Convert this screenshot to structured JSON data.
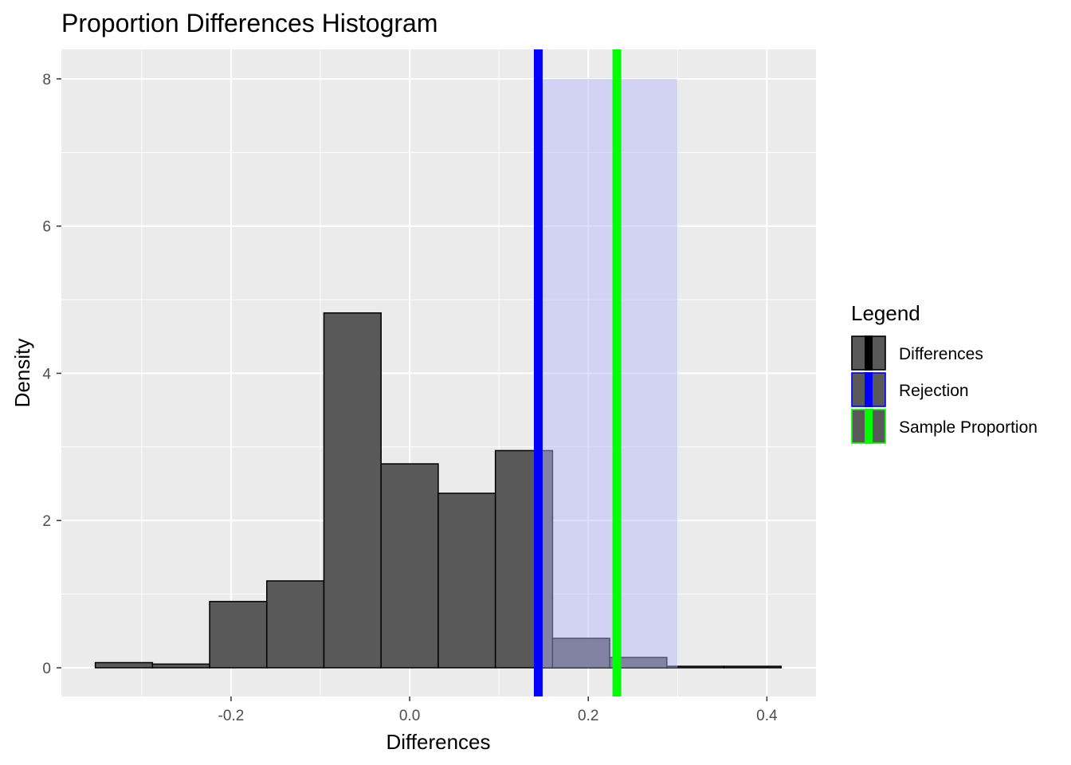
{
  "chart_data": {
    "type": "bar",
    "title": "Proportion Differences Histogram",
    "xlabel": "Differences",
    "ylabel": "Density",
    "xlim": [
      -0.39,
      0.455
    ],
    "ylim": [
      -0.39,
      8.4
    ],
    "x_ticks": [
      {
        "value": -0.2,
        "label": "-0.2"
      },
      {
        "value": 0.0,
        "label": "0.0"
      },
      {
        "value": 0.2,
        "label": "0.2"
      },
      {
        "value": 0.4,
        "label": "0.4"
      }
    ],
    "y_ticks": [
      {
        "value": 0,
        "label": "0"
      },
      {
        "value": 2,
        "label": "2"
      },
      {
        "value": 4,
        "label": "4"
      },
      {
        "value": 6,
        "label": "6"
      },
      {
        "value": 8,
        "label": "8"
      }
    ],
    "grid": true,
    "bins": [
      {
        "x0": -0.352,
        "x1": -0.288,
        "density": 0.07
      },
      {
        "x0": -0.288,
        "x1": -0.224,
        "density": 0.05
      },
      {
        "x0": -0.224,
        "x1": -0.16,
        "density": 0.9
      },
      {
        "x0": -0.16,
        "x1": -0.096,
        "density": 1.18
      },
      {
        "x0": -0.096,
        "x1": -0.032,
        "density": 4.82
      },
      {
        "x0": -0.032,
        "x1": 0.032,
        "density": 2.77
      },
      {
        "x0": 0.032,
        "x1": 0.096,
        "density": 2.37
      },
      {
        "x0": 0.096,
        "x1": 0.16,
        "density": 2.95
      },
      {
        "x0": 0.16,
        "x1": 0.224,
        "density": 0.4
      },
      {
        "x0": 0.224,
        "x1": 0.288,
        "density": 0.14
      },
      {
        "x0": 0.288,
        "x1": 0.352,
        "density": 0.02
      },
      {
        "x0": 0.352,
        "x1": 0.416,
        "density": 0.02
      }
    ],
    "rejection_region": {
      "x0": 0.144,
      "x1": 0.3,
      "y_max": 8.0
    },
    "vlines": [
      {
        "name": "Rejection",
        "x": 0.144
      },
      {
        "name": "Sample Proportion",
        "x": 0.232
      }
    ],
    "legend": {
      "title": "Legend",
      "placement": "right",
      "items": [
        {
          "label": "Differences",
          "line_color": "#000000",
          "border_color": "#000000"
        },
        {
          "label": "Rejection",
          "line_color": "#0000ff",
          "border_color": "#0000ff"
        },
        {
          "label": "Sample Proportion",
          "line_color": "#00ff00",
          "border_color": "#00ff00"
        }
      ]
    },
    "colors": {
      "panel_background": "#ebebeb",
      "grid_major": "#ffffff",
      "bar_fill": "#595959",
      "bar_stroke": "#000000",
      "rejection_fill": "#b3b3ff",
      "rejection_line": "#0000ff",
      "sample_line": "#00ff00",
      "tick_text": "#4d4d4d"
    }
  }
}
